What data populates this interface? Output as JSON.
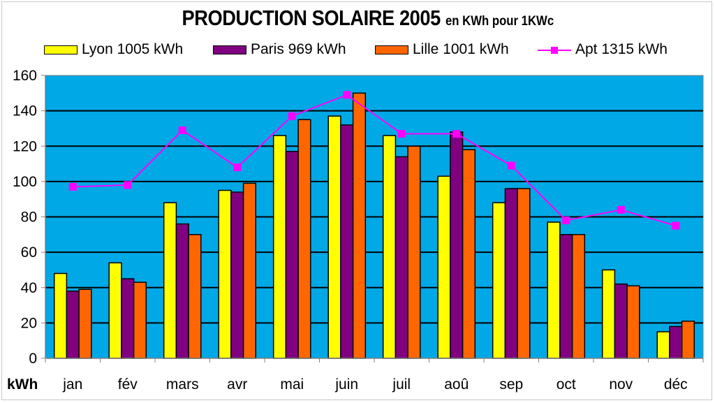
{
  "title": {
    "main": "PRODUCTION SOLAIRE 2005",
    "sub": "en KWh pour 1KWc"
  },
  "legend": [
    {
      "label": "Lyon 1005 kWh",
      "color": "#FFFF00",
      "kind": "bar"
    },
    {
      "label": "Paris 969 kWh",
      "color": "#800080",
      "kind": "bar"
    },
    {
      "label": "Lille 1001 kWh",
      "color": "#FF6600",
      "kind": "bar"
    },
    {
      "label": "Apt 1315 kWh",
      "color": "#FF00FF",
      "kind": "line"
    }
  ],
  "colors": {
    "plot_background": "#00A8E6",
    "gridline": "#000000",
    "lyon": "#FFFF00",
    "paris": "#800080",
    "lille": "#FF6600",
    "apt": "#FF00FF"
  },
  "chart_data": {
    "type": "bar",
    "title": "PRODUCTION SOLAIRE 2005 en KWh pour 1KWc",
    "xlabel": "",
    "ylabel": "kWh",
    "unit_label": "kWh",
    "ylim": [
      0,
      160
    ],
    "yticks": [
      0,
      20,
      40,
      60,
      80,
      100,
      120,
      140,
      160
    ],
    "grid": true,
    "legend_position": "top",
    "categories": [
      "jan",
      "fév",
      "mars",
      "avr",
      "mai",
      "juin",
      "juil",
      "aoû",
      "sep",
      "oct",
      "nov",
      "déc"
    ],
    "series": [
      {
        "name": "Lyon 1005 kWh",
        "type": "bar",
        "color": "#FFFF00",
        "values": [
          48,
          54,
          88,
          95,
          126,
          137,
          126,
          103,
          88,
          77,
          50,
          15
        ]
      },
      {
        "name": "Paris 969 kWh",
        "type": "bar",
        "color": "#800080",
        "values": [
          38,
          45,
          76,
          94,
          117,
          132,
          114,
          128,
          96,
          70,
          42,
          18
        ]
      },
      {
        "name": "Lille 1001 kWh",
        "type": "bar",
        "color": "#FF6600",
        "values": [
          39,
          43,
          70,
          99,
          135,
          150,
          120,
          118,
          96,
          70,
          41,
          21
        ]
      },
      {
        "name": "Apt 1315 kWh",
        "type": "line",
        "color": "#FF00FF",
        "marker": "square",
        "values": [
          97,
          98,
          129,
          108,
          137,
          149,
          127,
          127,
          109,
          78,
          84,
          75
        ]
      }
    ]
  }
}
